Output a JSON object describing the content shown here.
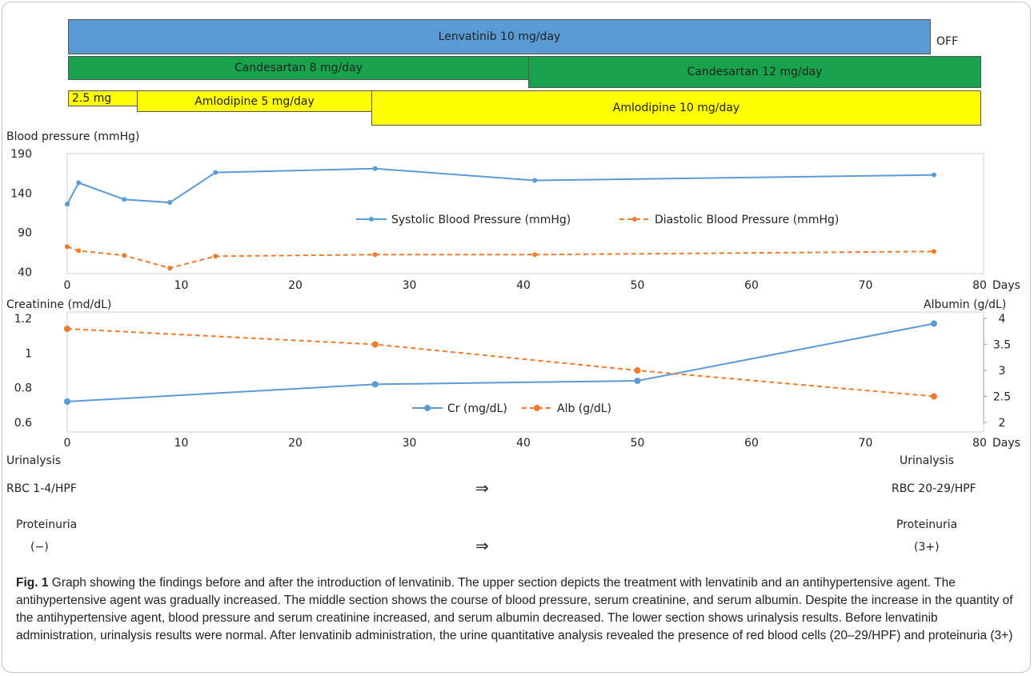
{
  "treatment": {
    "lenvatinib": "Lenvatinib 10 mg/day",
    "off": "OFF",
    "candesartan_1": "Candesartan 8 mg/day",
    "candesartan_2": "Candesartan 12 mg/day",
    "amlodipine_1": "2.5 mg",
    "amlodipine_2": "Amlodipine 5 mg/day",
    "amlodipine_3": "Amlodipine 10 mg/day",
    "colors": {
      "lenvatinib": "#5b9bd5",
      "candesartan": "#19a24c",
      "amlodipine": "#ffff00"
    }
  },
  "chart_data": [
    {
      "type": "line",
      "ylabel": "Blood pressure (mmHg)",
      "xlabel": "Days",
      "xlim": [
        0,
        80
      ],
      "ylim": [
        40,
        190
      ],
      "x_ticks": [
        0,
        10,
        20,
        30,
        40,
        50,
        60,
        70,
        80
      ],
      "y_ticks": [
        40,
        90,
        140,
        190
      ],
      "legend_position": "center",
      "grid": false,
      "series": [
        {
          "name": "Systolic Blood Pressure (mmHg)",
          "color": "#5b9bd5",
          "dash": false,
          "x": [
            0,
            1,
            5,
            9,
            13,
            27,
            41,
            76
          ],
          "y": [
            126,
            153,
            132,
            128,
            166,
            171,
            156,
            163
          ]
        },
        {
          "name": "Diastolic Blood Pressure (mmHg)",
          "color": "#ed7d31",
          "dash": true,
          "x": [
            0,
            1,
            5,
            9,
            13,
            27,
            41,
            76
          ],
          "y": [
            72,
            67,
            61,
            45,
            60,
            62,
            62,
            66
          ]
        }
      ]
    },
    {
      "type": "line",
      "ylabel": "Creatinine (md/dL)",
      "ylabel_right": "Albumin (g/dL)",
      "xlabel": "Days",
      "xlim": [
        0,
        80
      ],
      "ylim": [
        0.6,
        1.2
      ],
      "ylim_right": [
        2,
        4
      ],
      "x_ticks": [
        0,
        10,
        20,
        30,
        40,
        50,
        60,
        70,
        80
      ],
      "y_ticks": [
        0.6,
        0.8,
        1,
        1.2
      ],
      "y_ticks_right": [
        2,
        2.5,
        3,
        3.5,
        4
      ],
      "legend_position": "bottom-center",
      "grid": false,
      "series": [
        {
          "name": "Cr (mg/dL)",
          "color": "#5b9bd5",
          "dash": false,
          "axis": "left",
          "x": [
            0,
            27,
            50,
            76
          ],
          "y": [
            0.72,
            0.82,
            0.84,
            1.17
          ]
        },
        {
          "name": "Alb (g/dL)",
          "color": "#ed7d31",
          "dash": true,
          "axis": "right",
          "x": [
            0,
            27,
            50,
            76
          ],
          "y": [
            3.8,
            3.5,
            3.0,
            2.5
          ]
        }
      ]
    }
  ],
  "urinalysis": {
    "left_title": "Urinalysis",
    "left_rbc": "RBC 1-4/HPF",
    "right_title": "Urinalysis",
    "right_rbc": "RBC 20-29/HPF",
    "arrow": "⇒",
    "left_prot_title": "Proteinuria",
    "left_prot": "(−)",
    "right_prot_title": "Proteinuria",
    "right_prot": "(3+)"
  },
  "caption": {
    "label": "Fig. 1",
    "text": " Graph showing the findings before and after the introduction of lenvatinib. The upper section depicts the treatment with lenvatinib and an antihypertensive agent. The antihypertensive agent was gradually increased. The middle section shows the course of blood pressure, serum creatinine, and serum albumin. Despite the increase in the quantity of the antihypertensive agent, blood pressure and serum creatinine increased, and serum albumin decreased. The lower section shows urinalysis results. Before lenvatinib administration, urinalysis results were normal. After lenvatinib administration, the urine quantitative analysis revealed the presence of red blood cells (20–29/HPF) and proteinuria (3+)"
  }
}
